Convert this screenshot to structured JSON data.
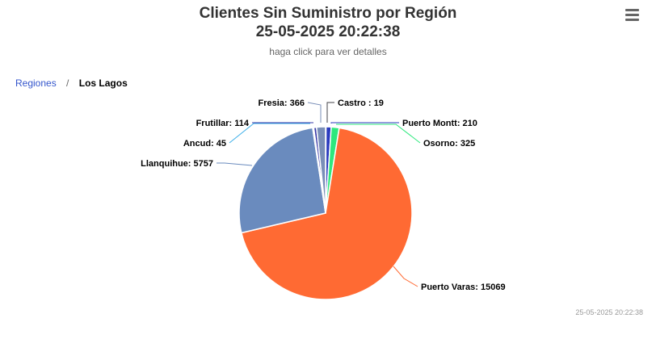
{
  "chart_data": {
    "type": "pie",
    "title": "Clientes Sin Suministro por Región",
    "title_time": "25-05-2025 20:22:38",
    "subtitle": "haga click para ver detalles",
    "slices": [
      {
        "name": "Castro",
        "value": 19,
        "color": "#434348",
        "label": "Castro : 19",
        "label_side": "right"
      },
      {
        "name": "Puerto Montt",
        "value": 210,
        "color": "#2b3bbf",
        "label": "Puerto Montt: 210",
        "label_side": "right"
      },
      {
        "name": "Osorno",
        "value": 325,
        "color": "#2ee87d",
        "label": "Osorno: 325",
        "label_side": "right"
      },
      {
        "name": "Puerto Varas",
        "value": 15069,
        "color": "#ff6a33",
        "label": "Puerto Varas: 15069",
        "label_side": "right"
      },
      {
        "name": "Llanquihue",
        "value": 5757,
        "color": "#6a8bbe",
        "label": "Llanquihue: 5757",
        "label_side": "left"
      },
      {
        "name": "Ancud",
        "value": 45,
        "color": "#3aaee8",
        "label": "Ancud: 45",
        "label_side": "left"
      },
      {
        "name": "Frutillar",
        "value": 114,
        "color": "#3a3aa8",
        "label": "Frutillar: 114",
        "label_side": "left"
      },
      {
        "name": "Fresia",
        "value": 366,
        "color": "#7a8fb8",
        "label": "Fresia: 366",
        "label_side": "left"
      }
    ]
  },
  "breadcrumb": {
    "root": "Regiones",
    "separator": "/",
    "current": "Los Lagos"
  },
  "menu": {
    "icon": "hamburger-icon"
  },
  "footer": {
    "timestamp": "25-05-2025 20:22:38"
  }
}
